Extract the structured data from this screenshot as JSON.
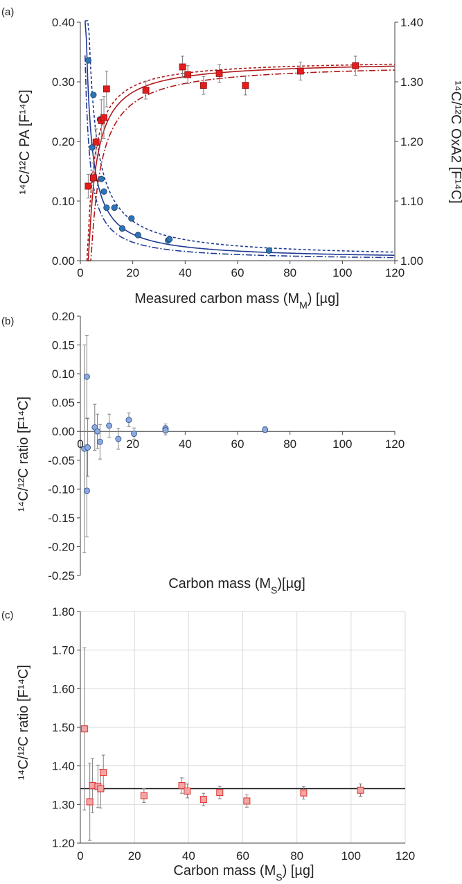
{
  "panel_labels": [
    "(a)",
    "(b)",
    "(c)"
  ],
  "colors": {
    "blue_marker": "#2E75B6",
    "blue_line": "#1F3A93",
    "red_marker": "#E51C1C",
    "red_line": "#B01A1A",
    "light_blue_marker": "#8FAADC",
    "light_red_marker": "#F4A5A5"
  },
  "chart_data": [
    {
      "type": "scatter",
      "panel": "(a)",
      "xlabel_main": "Measured carbon mass (M",
      "xlabel_sub": "M",
      "xlabel_tail": ") [µg]",
      "ylabel": "¹⁴C/¹²C PA [F¹⁴C]",
      "ylabel_right": "¹⁴C/¹²C OxA2 [F¹⁴C]",
      "xlim": [
        0,
        120
      ],
      "ylim": [
        0,
        0.4
      ],
      "ylim_right": [
        1.0,
        1.4
      ],
      "x_ticks": [
        "0",
        "20",
        "40",
        "60",
        "80",
        "100",
        "120"
      ],
      "y_ticks": [
        "0.00",
        "0.10",
        "0.20",
        "0.30",
        "0.40"
      ],
      "y_right_ticks": [
        "1.00",
        "1.10",
        "1.20",
        "1.30",
        "1.40"
      ],
      "series": [
        {
          "marker": "circle",
          "axis": "left",
          "points": [
            {
              "x": 3.0,
              "y": 0.336
            },
            {
              "x": 4.5,
              "y": 0.19
            },
            {
              "x": 5.0,
              "y": 0.278
            },
            {
              "x": 6.0,
              "y": 0.2
            },
            {
              "x": 7.5,
              "y": 0.237
            },
            {
              "x": 8.0,
              "y": 0.137
            },
            {
              "x": 9.0,
              "y": 0.116
            },
            {
              "x": 10.0,
              "y": 0.089
            },
            {
              "x": 13.0,
              "y": 0.089
            },
            {
              "x": 16.0,
              "y": 0.054
            },
            {
              "x": 19.5,
              "y": 0.071
            },
            {
              "x": 22.0,
              "y": 0.043
            },
            {
              "x": 33.5,
              "y": 0.034
            },
            {
              "x": 34.0,
              "y": 0.036
            },
            {
              "x": 72.0,
              "y": 0.017
            }
          ]
        },
        {
          "marker": "square",
          "axis": "right",
          "points": [
            {
              "x": 3.0,
              "y": 1.125,
              "err": 0.02
            },
            {
              "x": 5.0,
              "y": 1.139,
              "err": 0.025
            },
            {
              "x": 6.0,
              "y": 1.199,
              "err": 0.022
            },
            {
              "x": 8.0,
              "y": 1.235,
              "err": 0.035
            },
            {
              "x": 9.0,
              "y": 1.24,
              "err": 0.035
            },
            {
              "x": 10.0,
              "y": 1.288,
              "err": 0.03
            },
            {
              "x": 25.0,
              "y": 1.286,
              "err": 0.015
            },
            {
              "x": 39.0,
              "y": 1.325,
              "err": 0.018
            },
            {
              "x": 41.0,
              "y": 1.312,
              "err": 0.015
            },
            {
              "x": 47.0,
              "y": 1.294,
              "err": 0.015
            },
            {
              "x": 53.0,
              "y": 1.314,
              "err": 0.015
            },
            {
              "x": 63.0,
              "y": 1.294,
              "err": 0.016
            },
            {
              "x": 84.0,
              "y": 1.318,
              "err": 0.015
            },
            {
              "x": 105.0,
              "y": 1.327,
              "err": 0.016
            }
          ]
        }
      ]
    },
    {
      "type": "scatter",
      "panel": "(b)",
      "xlabel_main": "Carbon mass (M",
      "xlabel_sub": "S",
      "xlabel_tail": ")[µg]",
      "ylabel": "¹⁴C/¹²C ratio [F¹⁴C]",
      "xlim": [
        0,
        120
      ],
      "ylim": [
        -0.25,
        0.2
      ],
      "x_ticks": [
        "0",
        "20",
        "40",
        "60",
        "80",
        "100",
        "120"
      ],
      "y_ticks": [
        "-0.25",
        "-0.20",
        "-0.15",
        "-0.10",
        "-0.05",
        "0.00",
        "0.05",
        "0.10",
        "0.15",
        "0.20"
      ],
      "points": [
        {
          "x": 1.5,
          "y": -0.03,
          "err": 0.18
        },
        {
          "x": 2.5,
          "y": 0.095,
          "err": 0.072
        },
        {
          "x": 2.5,
          "y": -0.103,
          "err": 0.08
        },
        {
          "x": 2.8,
          "y": -0.028,
          "err": 0.05
        },
        {
          "x": 5.5,
          "y": 0.007,
          "err": 0.04
        },
        {
          "x": 6.5,
          "y": 0.0,
          "err": 0.03
        },
        {
          "x": 7.5,
          "y": -0.018,
          "err": 0.03
        },
        {
          "x": 11.0,
          "y": 0.01,
          "err": 0.02
        },
        {
          "x": 14.5,
          "y": -0.013,
          "err": 0.018
        },
        {
          "x": 18.5,
          "y": 0.02,
          "err": 0.012
        },
        {
          "x": 20.5,
          "y": -0.004,
          "err": 0.01
        },
        {
          "x": 32.5,
          "y": 0.005,
          "err": 0.008
        },
        {
          "x": 32.5,
          "y": 0.002,
          "err": 0.008
        },
        {
          "x": 70.5,
          "y": 0.003,
          "err": 0.005
        }
      ]
    },
    {
      "type": "scatter",
      "panel": "(c)",
      "xlabel_main": "Carbon mass (M",
      "xlabel_sub": "S",
      "xlabel_tail": ") [µg]",
      "ylabel": "¹⁴C/¹²C ratio [F¹⁴C]",
      "xlim": [
        0,
        120
      ],
      "ylim": [
        1.2,
        1.8
      ],
      "reference_line": 1.341,
      "grid": true,
      "x_ticks": [
        "0",
        "20",
        "40",
        "60",
        "80",
        "100",
        "120"
      ],
      "y_ticks": [
        "1.20",
        "1.30",
        "1.40",
        "1.50",
        "1.60",
        "1.70",
        "1.80"
      ],
      "points": [
        {
          "x": 1.5,
          "y": 1.496,
          "err": 0.21
        },
        {
          "x": 3.5,
          "y": 1.307,
          "err": 0.1
        },
        {
          "x": 4.5,
          "y": 1.349,
          "err": 0.07
        },
        {
          "x": 6.5,
          "y": 1.347,
          "err": 0.055
        },
        {
          "x": 7.5,
          "y": 1.341,
          "err": 0.05
        },
        {
          "x": 8.5,
          "y": 1.383,
          "err": 0.045
        },
        {
          "x": 23.5,
          "y": 1.323,
          "err": 0.018
        },
        {
          "x": 37.5,
          "y": 1.349,
          "err": 0.02
        },
        {
          "x": 39.5,
          "y": 1.335,
          "err": 0.018
        },
        {
          "x": 45.5,
          "y": 1.313,
          "err": 0.016
        },
        {
          "x": 51.5,
          "y": 1.331,
          "err": 0.016
        },
        {
          "x": 61.5,
          "y": 1.309,
          "err": 0.016
        },
        {
          "x": 82.5,
          "y": 1.33,
          "err": 0.016
        },
        {
          "x": 103.5,
          "y": 1.337,
          "err": 0.016
        }
      ]
    }
  ]
}
